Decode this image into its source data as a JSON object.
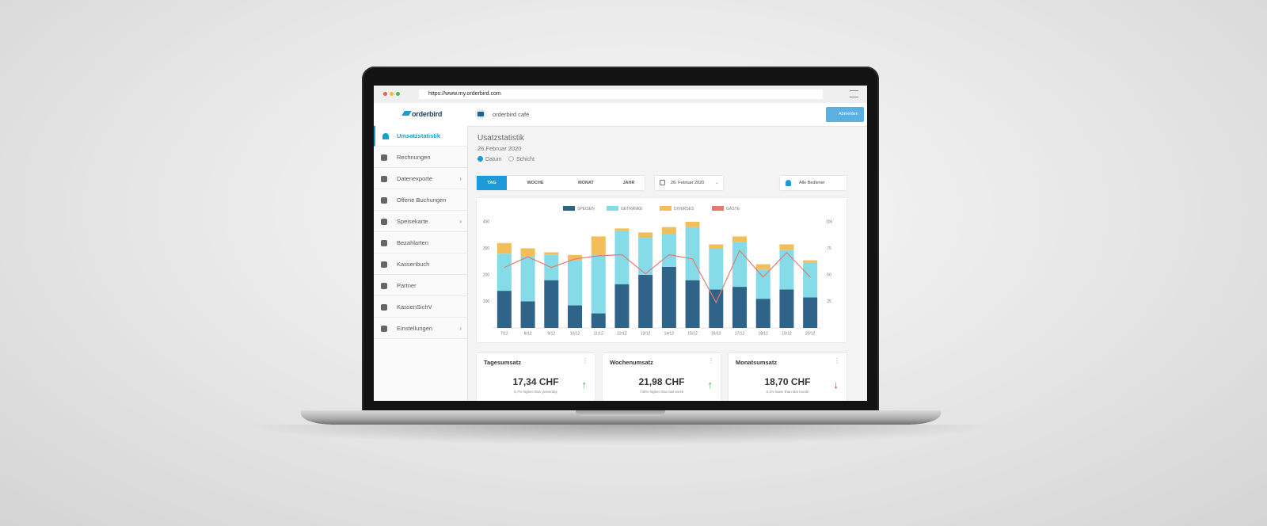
{
  "browser": {
    "url": "https://www.my.orderbird.com"
  },
  "header": {
    "logo": "orderbird",
    "venue": "orderbird café",
    "logout": "Abmelden"
  },
  "sidebar": [
    "Umsatzstatistik",
    "Rechnungen",
    "Datenexporte",
    "Offene Buchungen",
    "Speisekarte",
    "Bezahlarten",
    "Kassenbuch",
    "Partner",
    "KassenSichV",
    "Einstellungen"
  ],
  "page": {
    "title": "Usatzstatistik",
    "date": "26.Februar 2020",
    "radios": [
      "Datum",
      "Schicht"
    ]
  },
  "tabs": [
    "TAG",
    "WOCHE",
    "MONAT",
    "JAHR"
  ],
  "date_picker": "26. Februar 2020",
  "staff_filter": "Alle Bediener",
  "chart": {
    "type": "bar",
    "stacked": true,
    "categories": [
      "7/12",
      "8/12",
      "9/12",
      "10/12",
      "11/12",
      "12/12",
      "13/12",
      "14/12",
      "15/12",
      "16/12",
      "17/12",
      "18/12",
      "19/12",
      "20/12"
    ],
    "series": [
      {
        "name": "SPEISEN",
        "color": "#2f6387",
        "values": [
          140,
          100,
          180,
          85,
          55,
          165,
          200,
          230,
          180,
          145,
          155,
          110,
          145,
          115
        ]
      },
      {
        "name": "GETRÄNKE",
        "color": "#86dbe8",
        "values": [
          140,
          170,
          95,
          170,
          220,
          200,
          140,
          125,
          200,
          155,
          170,
          110,
          150,
          130
        ]
      },
      {
        "name": "DIVERSES",
        "color": "#f3bd5a",
        "values": [
          40,
          30,
          10,
          20,
          70,
          10,
          20,
          25,
          20,
          15,
          20,
          20,
          20,
          10
        ]
      },
      {
        "name": "GÄSTE",
        "color": "#e07b6e",
        "type": "line",
        "axis": "y2",
        "values": [
          57,
          67,
          57,
          65,
          68,
          69,
          51,
          69,
          65,
          24,
          73,
          48,
          71,
          48
        ]
      }
    ],
    "ylim": [
      0,
      400
    ],
    "yticks": [
      100,
      200,
      300,
      400
    ],
    "y2lim": [
      0,
      100
    ],
    "y2ticks": [
      25,
      50,
      75,
      100
    ]
  },
  "kpis": [
    {
      "title": "Tagesumsatz",
      "value": "17,34 CHF",
      "note": "5,7% higher than yesterday",
      "trend": "up"
    },
    {
      "title": "Wochenumsatz",
      "value": "21,98 CHF",
      "note": "749% higher than last week",
      "trend": "up"
    },
    {
      "title": "Monatsumsatz",
      "value": "18,70 CHF",
      "note": "3,1% lower than last month",
      "trend": "down"
    }
  ]
}
